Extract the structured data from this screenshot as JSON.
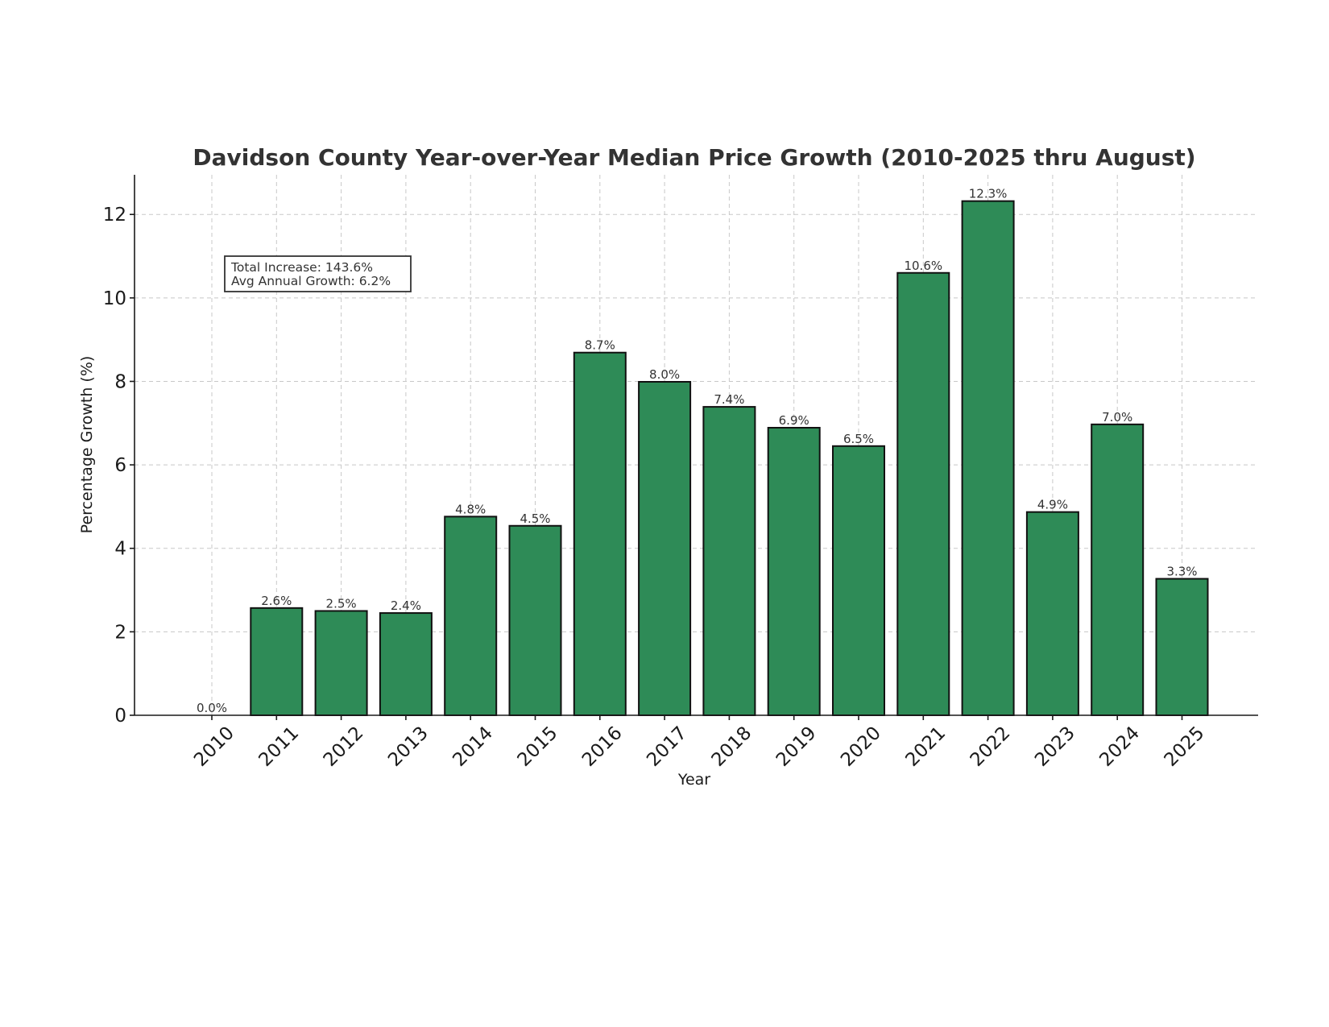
{
  "chart_data": {
    "type": "bar",
    "title": "Davidson County Year-over-Year Median Price Growth (2010-2025 thru August)",
    "xlabel": "Year",
    "ylabel": "Percentage Growth (%)",
    "categories": [
      "2010",
      "2011",
      "2012",
      "2013",
      "2014",
      "2015",
      "2016",
      "2017",
      "2018",
      "2019",
      "2020",
      "2021",
      "2022",
      "2023",
      "2024",
      "2025"
    ],
    "values": [
      0.0,
      2.57,
      2.5,
      2.45,
      4.76,
      4.54,
      8.69,
      7.99,
      7.39,
      6.89,
      6.45,
      10.6,
      12.32,
      4.87,
      6.97,
      3.27
    ],
    "data_labels": [
      "0.0%",
      "2.6%",
      "2.5%",
      "2.4%",
      "4.8%",
      "4.5%",
      "8.7%",
      "8.0%",
      "7.4%",
      "6.9%",
      "6.5%",
      "10.6%",
      "12.3%",
      "4.9%",
      "7.0%",
      "3.3%"
    ],
    "yticks": [
      0,
      2,
      4,
      6,
      8,
      10,
      12
    ],
    "ylim": [
      0,
      12.95
    ],
    "grid": true,
    "bar_color": "#2e8b57",
    "bar_edge_color": "#111111",
    "annotation": {
      "lines": [
        "Total Increase: 143.6%",
        "Avg Annual Growth: 6.2%"
      ],
      "placement": "top-left"
    }
  }
}
